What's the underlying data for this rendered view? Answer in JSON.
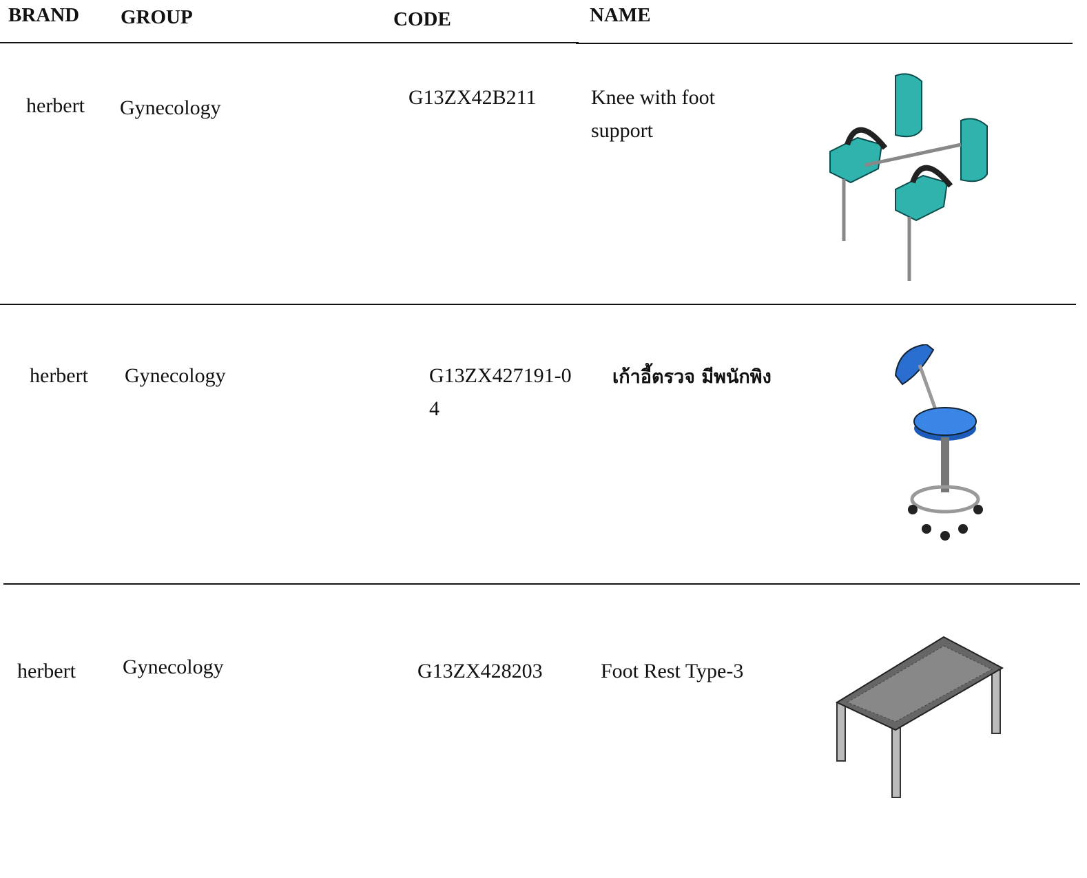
{
  "header": {
    "brand": "BRAND",
    "group": "GROUP",
    "code": "CODE",
    "name": "NAME"
  },
  "rows": [
    {
      "brand": "herbert",
      "group": "Gynecology",
      "code": "G13ZX42B211",
      "name": "Knee with foot support"
    },
    {
      "brand": "herbert",
      "group": "Gynecology",
      "code": "G13ZX427191-04",
      "name": "เก้าอี้ตรวจ มีพนักพิง"
    },
    {
      "brand": "herbert",
      "group": "Gynecology",
      "code": "G13ZX428203",
      "name": "Foot Rest Type-3"
    }
  ]
}
